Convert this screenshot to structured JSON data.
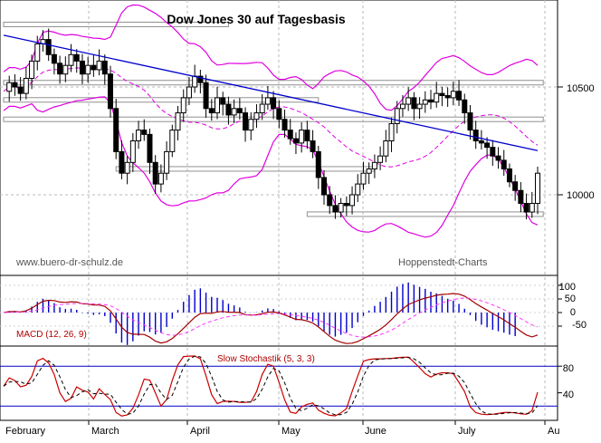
{
  "chart_data": [
    {
      "type": "candlestick",
      "title": "Dow Jones 30 auf Tagesbasis",
      "credit_left": "www.buero-dr-schulz.de",
      "credit_right": "Hoppenstedt-Charts",
      "y_ticks": [
        {
          "value": 10500,
          "label": "10500"
        },
        {
          "value": 10000,
          "label": "10000"
        }
      ],
      "ylim": [
        9600,
        11000
      ],
      "x_months": [
        "February",
        "March",
        "April",
        "May",
        "June",
        "July",
        "Au"
      ],
      "close_path": [
        10480,
        10520,
        10500,
        10470,
        10540,
        10620,
        10700,
        10720,
        10650,
        10610,
        10560,
        10600,
        10650,
        10620,
        10560,
        10600,
        10580,
        10620,
        10560,
        10400,
        10200,
        10100,
        10150,
        10250,
        10300,
        10280,
        10150,
        10050,
        10100,
        10200,
        10300,
        10380,
        10450,
        10500,
        10550,
        10520,
        10400,
        10380,
        10450,
        10420,
        10370,
        10400,
        10380,
        10300,
        10350,
        10380,
        10420,
        10450,
        10400,
        10350,
        10300,
        10260,
        10240,
        10300,
        10250,
        10200,
        10080,
        10000,
        9950,
        9920,
        9960,
        9950,
        10000,
        10050,
        10100,
        10120,
        10150,
        10180,
        10250,
        10330,
        10400,
        10420,
        10450,
        10400,
        10420,
        10440,
        10430,
        10470,
        10460,
        10450,
        10480,
        10440,
        10380,
        10300,
        10250,
        10240,
        10220,
        10180,
        10160,
        10120,
        10060,
        10020,
        9960,
        9920,
        9960,
        10100
      ],
      "trendline": [
        [
          0,
          10740
        ],
        [
          95,
          10205
        ]
      ],
      "support_lines": [
        {
          "from": 0,
          "to": 96,
          "value": 10520
        },
        {
          "from": 0,
          "to": 96,
          "value": 10350
        },
        {
          "from": 0,
          "to": 56,
          "value": 10440
        },
        {
          "from": 0,
          "to": 40,
          "value": 10790
        },
        {
          "from": 20,
          "to": 66,
          "value": 10120
        },
        {
          "from": 54,
          "to": 96,
          "value": 9910
        }
      ],
      "grid": true
    },
    {
      "type": "line",
      "label": "MACD (12, 26, 9)",
      "y_ticks": [
        100,
        50,
        0,
        -50
      ],
      "ylim": [
        -110,
        140
      ],
      "grid": true
    },
    {
      "type": "line",
      "label": "Slow Stochastik (5, 3, 3)",
      "y_ticks": [
        80,
        40
      ],
      "ylim": [
        5,
        105
      ],
      "reference_levels": [
        80,
        20
      ],
      "grid": true
    }
  ]
}
